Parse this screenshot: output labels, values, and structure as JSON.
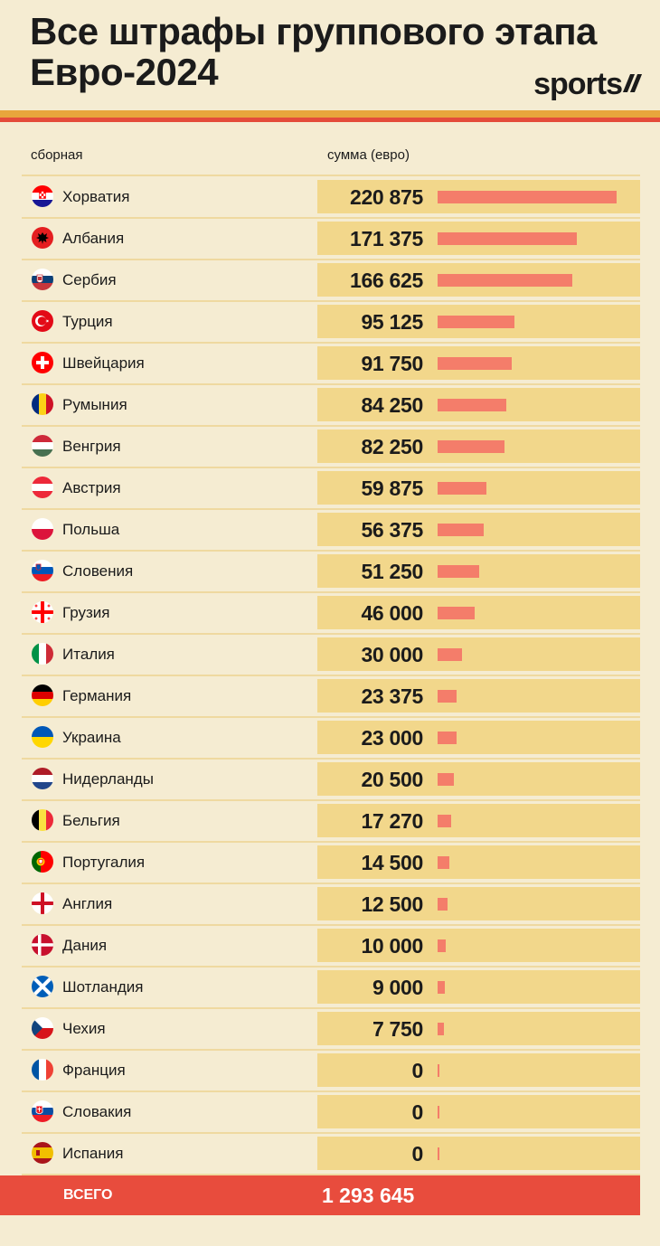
{
  "title_line1": "Все штрафы группового этапа",
  "title_line2": "Евро-2024",
  "logo": "sports",
  "colors": {
    "background": "#f5ecd2",
    "cell": "#f2d78b",
    "bar": "#f47d6a",
    "total": "#e84c3d",
    "accent_orange": "#e8a53c"
  },
  "total": {
    "label": "ВСЕГО",
    "value": "1 293 645"
  },
  "chart_data": {
    "type": "bar",
    "orientation": "horizontal",
    "column_team": "сборная",
    "column_amount": "сумма (евро)",
    "rows": [
      {
        "team": "Хорватия",
        "flag": "croatia-flag-icon",
        "value": 220875,
        "label": "220 875"
      },
      {
        "team": "Албания",
        "flag": "albania-flag-icon",
        "value": 171375,
        "label": "171 375"
      },
      {
        "team": "Сербия",
        "flag": "serbia-flag-icon",
        "value": 166625,
        "label": "166 625"
      },
      {
        "team": "Турция",
        "flag": "turkey-flag-icon",
        "value": 95125,
        "label": "95 125"
      },
      {
        "team": "Швейцария",
        "flag": "switzerland-flag-icon",
        "value": 91750,
        "label": "91 750"
      },
      {
        "team": "Румыния",
        "flag": "romania-flag-icon",
        "value": 84250,
        "label": "84 250"
      },
      {
        "team": "Венгрия",
        "flag": "hungary-flag-icon",
        "value": 82250,
        "label": "82 250"
      },
      {
        "team": "Австрия",
        "flag": "austria-flag-icon",
        "value": 59875,
        "label": "59 875"
      },
      {
        "team": "Польша",
        "flag": "poland-flag-icon",
        "value": 56375,
        "label": "56 375"
      },
      {
        "team": "Словения",
        "flag": "slovenia-flag-icon",
        "value": 51250,
        "label": "51 250"
      },
      {
        "team": "Грузия",
        "flag": "georgia-flag-icon",
        "value": 46000,
        "label": "46 000"
      },
      {
        "team": "Италия",
        "flag": "italy-flag-icon",
        "value": 30000,
        "label": "30 000"
      },
      {
        "team": "Германия",
        "flag": "germany-flag-icon",
        "value": 23375,
        "label": "23 375"
      },
      {
        "team": "Украина",
        "flag": "ukraine-flag-icon",
        "value": 23000,
        "label": "23 000"
      },
      {
        "team": "Нидерланды",
        "flag": "netherlands-flag-icon",
        "value": 20500,
        "label": "20 500"
      },
      {
        "team": "Бельгия",
        "flag": "belgium-flag-icon",
        "value": 17270,
        "label": "17 270"
      },
      {
        "team": "Португалия",
        "flag": "portugal-flag-icon",
        "value": 14500,
        "label": "14 500"
      },
      {
        "team": "Англия",
        "flag": "england-flag-icon",
        "value": 12500,
        "label": "12 500"
      },
      {
        "team": "Дания",
        "flag": "denmark-flag-icon",
        "value": 10000,
        "label": "10 000"
      },
      {
        "team": "Шотландия",
        "flag": "scotland-flag-icon",
        "value": 9000,
        "label": "9 000"
      },
      {
        "team": "Чехия",
        "flag": "czechia-flag-icon",
        "value": 7750,
        "label": "7 750"
      },
      {
        "team": "Франция",
        "flag": "france-flag-icon",
        "value": 0,
        "label": "0"
      },
      {
        "team": "Словакия",
        "flag": "slovakia-flag-icon",
        "value": 0,
        "label": "0"
      },
      {
        "team": "Испания",
        "flag": "spain-flag-icon",
        "value": 0,
        "label": "0"
      }
    ]
  }
}
